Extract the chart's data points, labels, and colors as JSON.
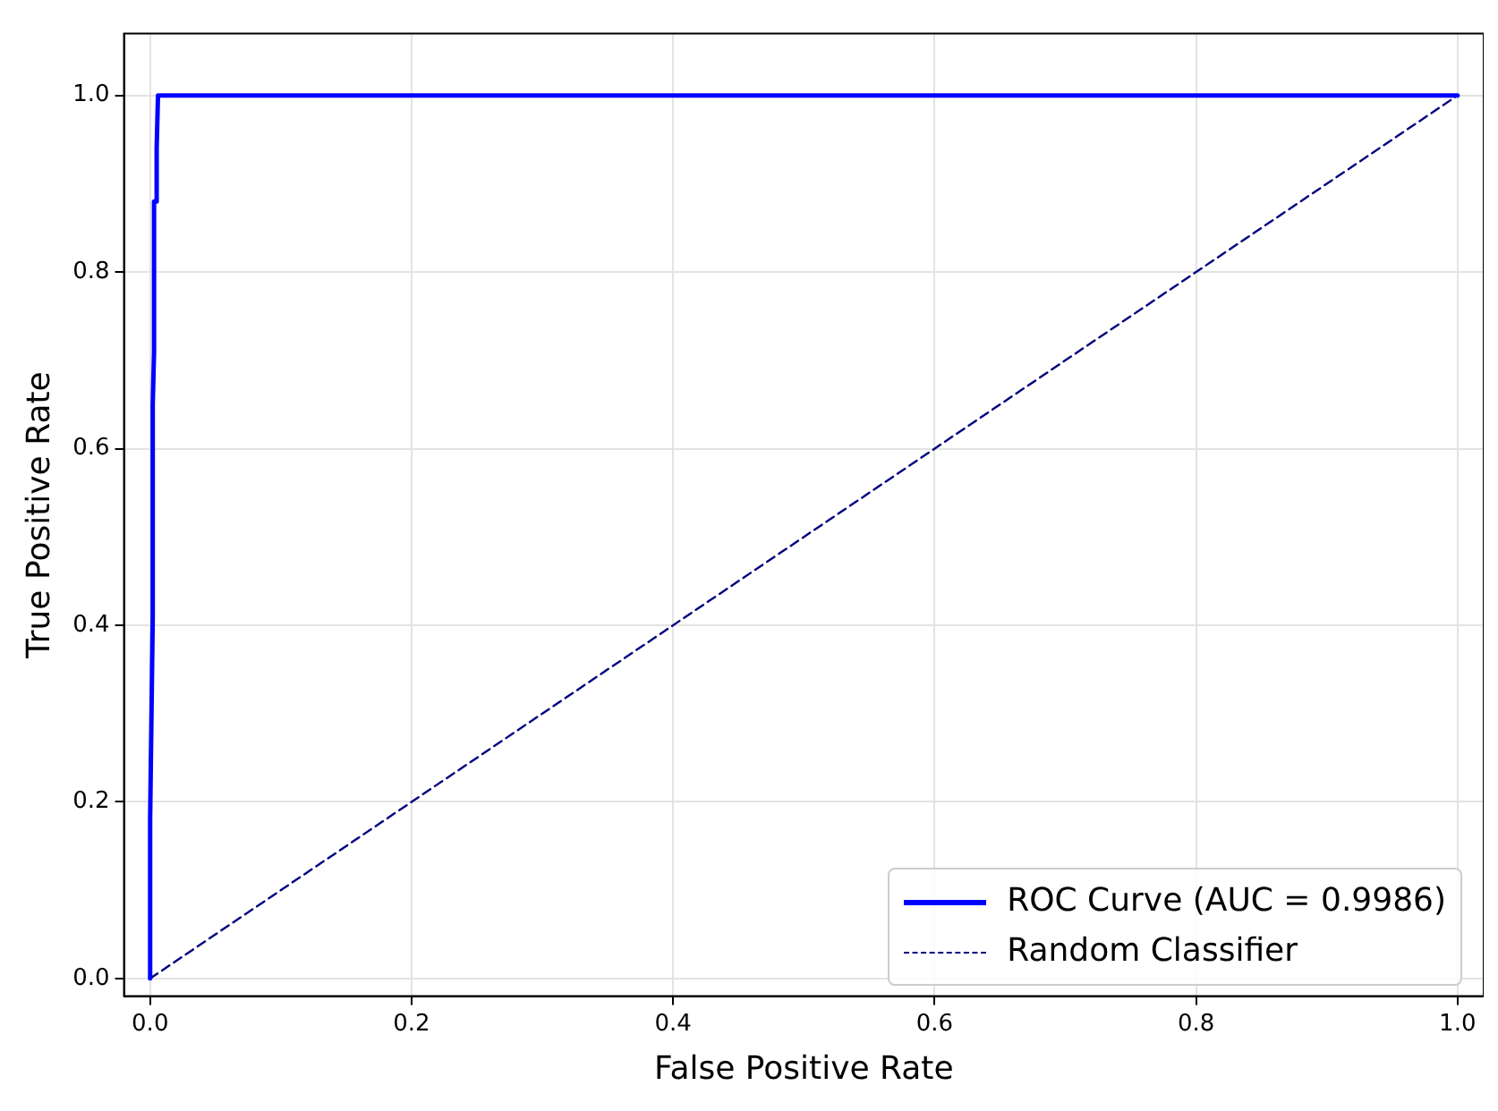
{
  "chart_data": {
    "type": "line",
    "xlabel": "False Positive Rate",
    "ylabel": "True Positive Rate",
    "xlim": [
      -0.02,
      1.02
    ],
    "ylim": [
      -0.02,
      1.07
    ],
    "xticks": [
      {
        "value": 0,
        "label": "0.0"
      },
      0.2,
      0.4,
      0.6,
      0.8,
      {
        "value": 1,
        "label": "1.0"
      }
    ],
    "yticks": [
      {
        "value": 0,
        "label": "0.0"
      },
      0.2,
      0.4,
      0.6,
      0.8,
      {
        "value": 1,
        "label": "1.0"
      }
    ],
    "grid": true,
    "legend": "bottom right",
    "marker": "none",
    "series": [
      {
        "name": "ROC Curve (AUC = 0.9986)",
        "color": "#0000ff",
        "line_style": "solid",
        "x": [
          0,
          0,
          0.002,
          0.002,
          0.003,
          0.003,
          0.005,
          0.005,
          0.006,
          1
        ],
        "values": [
          0,
          0.18,
          0.41,
          0.65,
          0.71,
          0.88,
          0.88,
          0.94,
          1,
          1
        ]
      },
      {
        "name": "Random Classifier",
        "color": "#000080",
        "line_style": "dashed",
        "x": [
          0,
          1
        ],
        "values": [
          0,
          1
        ]
      }
    ]
  }
}
